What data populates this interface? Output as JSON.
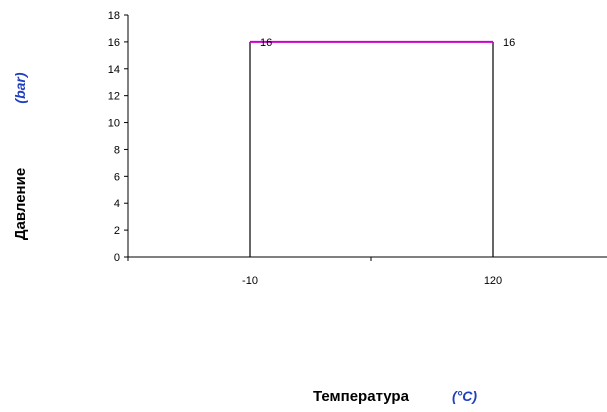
{
  "chart_data": {
    "type": "line",
    "x": [
      "-10",
      "120"
    ],
    "series": [
      {
        "values": [
          16,
          16
        ],
        "color": "#cc00cc"
      }
    ],
    "data_labels": [
      "16",
      "16"
    ],
    "ylim": [
      0,
      18
    ],
    "yticks": [
      0,
      2,
      4,
      6,
      8,
      10,
      12,
      14,
      16,
      18
    ],
    "xlabel": "Температура",
    "xlabel_unit": "(°C)",
    "ylabel": "Давление",
    "ylabel_unit": "(bar)",
    "grid": false,
    "legend": "none",
    "colors": {
      "axis": "#000000",
      "outline": "#000000",
      "series_line": "#cc00cc",
      "unit_text": "#1f3fbf"
    }
  }
}
